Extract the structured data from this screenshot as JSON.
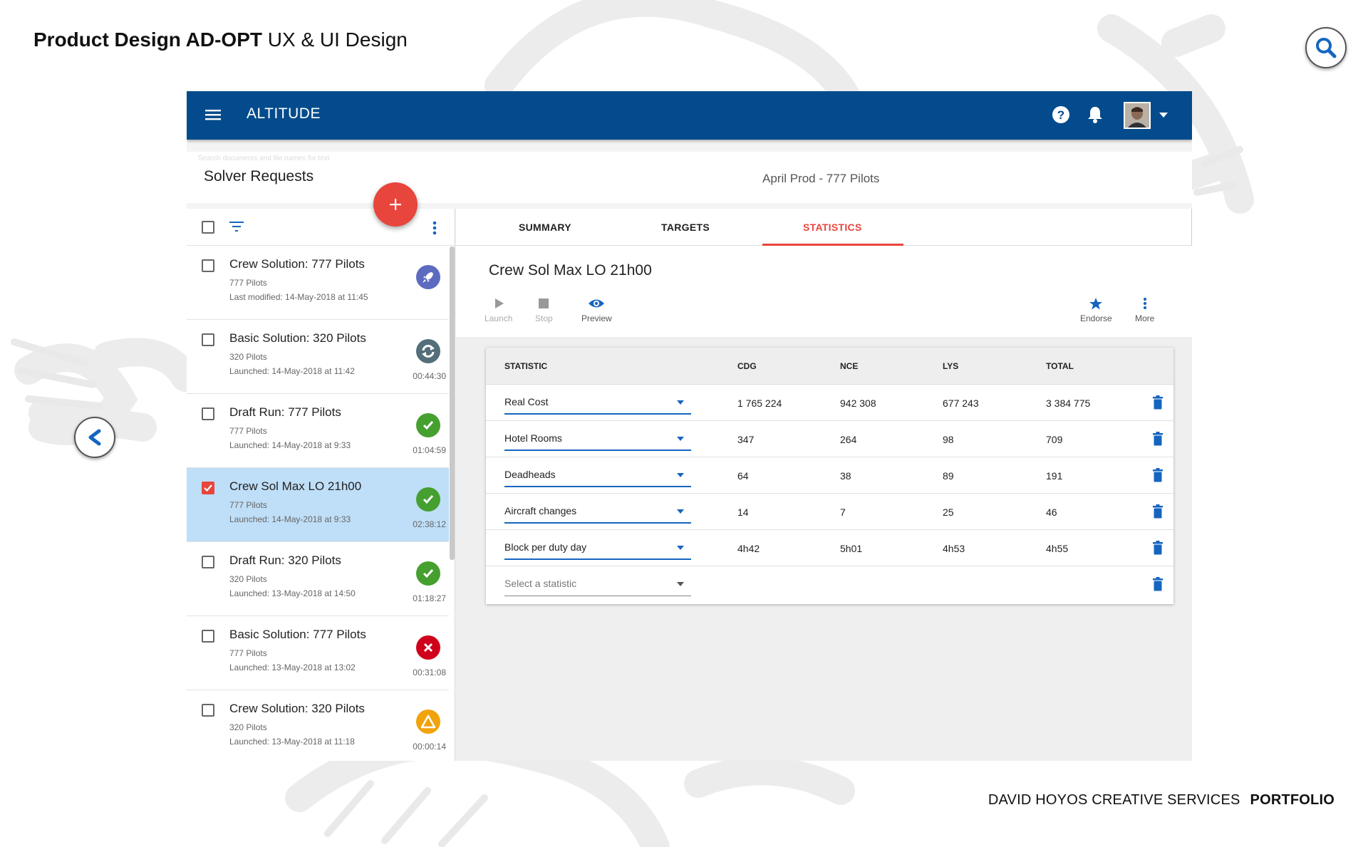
{
  "page": {
    "title_bold": "Product Design AD-OPT",
    "title_rest": "UX & UI Design",
    "footer_name": "DAVID HOYOS CREATIVE SERVICES",
    "footer_section": "PORTFOLIO",
    "icons": [
      "search-icon",
      "back-arrow-icon"
    ]
  },
  "colors": {
    "appbar": "#034b8c",
    "accent_red": "#e8453c",
    "selected_row": "#bfdef7",
    "status_success": "#45a02f",
    "status_error": "#d0021b",
    "status_warning": "#f0a30a",
    "status_running": "#546e7a",
    "status_launch": "#5c6bc0",
    "link_blue": "#1565c0"
  },
  "appbar": {
    "brand": "ALTITUDE",
    "icons": [
      "menu-icon",
      "help-icon",
      "bell-icon",
      "avatar",
      "caret-down-icon"
    ]
  },
  "subheader": {
    "search_hint": "Search documents and file names for text",
    "title": "Solver Requests",
    "context": "April Prod - 777 Pilots"
  },
  "requests": [
    {
      "name": "Crew Solution: 777 Pilots",
      "group": "777 Pilots",
      "meta": "Last modified: 14-May-2018 at 11:45",
      "status": "launch",
      "time": "",
      "selected": false
    },
    {
      "name": "Basic Solution: 320 Pilots",
      "group": "320 Pilots",
      "meta": "Launched: 14-May-2018 at 11:42",
      "status": "running",
      "time": "00:44:30",
      "selected": false
    },
    {
      "name": "Draft Run: 777 Pilots",
      "group": "777 Pilots",
      "meta": "Launched: 14-May-2018 at 9:33",
      "status": "success",
      "time": "01:04:59",
      "selected": false
    },
    {
      "name": "Crew Sol Max LO 21h00",
      "group": "777 Pilots",
      "meta": "Launched: 14-May-2018 at 9:33",
      "status": "success",
      "time": "02:38:12",
      "selected": true
    },
    {
      "name": "Draft Run: 320 Pilots",
      "group": "320 Pilots",
      "meta": "Launched: 13-May-2018 at 14:50",
      "status": "success",
      "time": "01:18:27",
      "selected": false
    },
    {
      "name": "Basic Solution: 777 Pilots",
      "group": "777 Pilots",
      "meta": "Launched: 13-May-2018 at 13:02",
      "status": "error",
      "time": "00:31:08",
      "selected": false
    },
    {
      "name": "Crew Solution: 320 Pilots",
      "group": "320 Pilots",
      "meta": "Launched: 13-May-2018 at 11:18",
      "status": "warning",
      "time": "00:00:14",
      "selected": false
    }
  ],
  "tabs": {
    "summary": "SUMMARY",
    "targets": "TARGETS",
    "statistics": "STATISTICS",
    "active": "statistics"
  },
  "detail": {
    "title": "Crew Sol Max LO 21h00",
    "actions": {
      "launch": "Launch",
      "stop": "Stop",
      "preview": "Preview",
      "endorse": "Endorse",
      "more": "More"
    }
  },
  "stats": {
    "headers": {
      "statistic": "STATISTIC",
      "cdg": "CDG",
      "nce": "NCE",
      "lys": "LYS",
      "total": "TOTAL"
    },
    "rows": [
      {
        "statistic": "Real Cost",
        "cdg": "1 765 224",
        "nce": "942 308",
        "lys": "677 243",
        "total": "3 384 775"
      },
      {
        "statistic": "Hotel Rooms",
        "cdg": "347",
        "nce": "264",
        "lys": "98",
        "total": "709"
      },
      {
        "statistic": "Deadheads",
        "cdg": "64",
        "nce": "38",
        "lys": "89",
        "total": "191"
      },
      {
        "statistic": "Aircraft changes",
        "cdg": "14",
        "nce": "7",
        "lys": "25",
        "total": "46"
      },
      {
        "statistic": "Block per duty day",
        "cdg": "4h42",
        "nce": "5h01",
        "lys": "4h53",
        "total": "4h55"
      }
    ],
    "placeholder": "Select a statistic"
  }
}
